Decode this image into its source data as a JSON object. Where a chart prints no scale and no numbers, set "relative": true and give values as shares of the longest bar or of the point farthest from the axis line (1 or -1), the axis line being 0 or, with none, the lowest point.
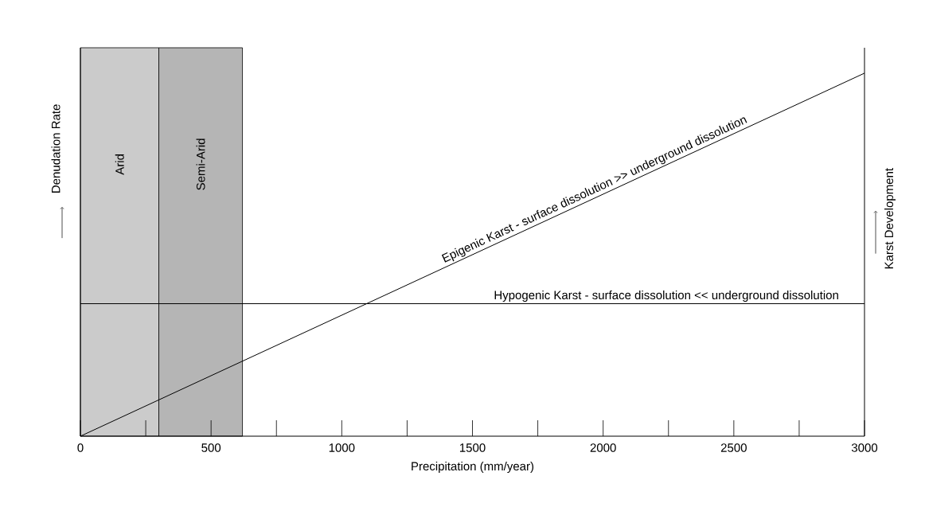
{
  "chart_data": {
    "type": "line",
    "relative": true,
    "xlabel": "Precipitation  (mm/year)",
    "ylabel": "Denudation Rate",
    "y2label": "Karst Development",
    "xlim": [
      0,
      3000
    ],
    "xticks": [
      0,
      500,
      1000,
      1500,
      2000,
      2500,
      3000
    ],
    "x": [
      0,
      3000
    ],
    "series": [
      {
        "name": "Epigenic Karst - surface dissolution >> underground dissolution",
        "color": "#000000",
        "values": [
          0,
          1
        ]
      },
      {
        "name": "Hypogenic Karst - surface dissolution << underground dissolution",
        "color": "#000000",
        "values": [
          0.365,
          0.365
        ]
      }
    ],
    "bands": [
      {
        "axis": "x",
        "from": 0,
        "to": 300,
        "label": "Arid",
        "color": "#cbcbcb"
      },
      {
        "axis": "x",
        "from": 300,
        "to": 620,
        "label": "Semi-Arid",
        "color": "#b5b5b5"
      }
    ],
    "grid": false,
    "marker": "none",
    "line_style": "solid"
  }
}
